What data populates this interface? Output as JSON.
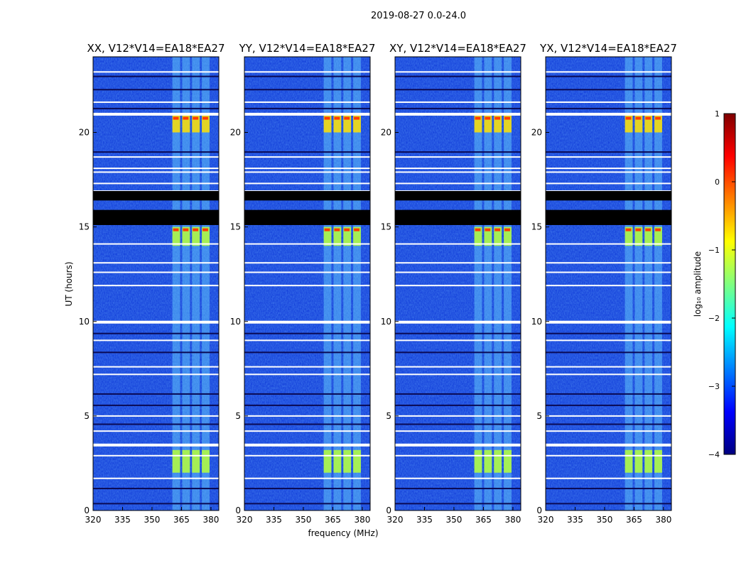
{
  "chart_data": {
    "type": "heatmap",
    "suptitle": "2019-08-27 0.0-24.0",
    "xlabel": "frequency (MHz)",
    "ylabel": "UT (hours)",
    "xlim": [
      320,
      384
    ],
    "ylim": [
      0,
      24
    ],
    "xticks": [
      320,
      335,
      350,
      365,
      380
    ],
    "yticks": [
      0,
      5,
      10,
      15,
      20
    ],
    "panels": [
      {
        "title": "XX, V12*V14=EA18*EA27",
        "rfi_band_mhz": [
          360,
          380
        ]
      },
      {
        "title": "YY, V12*V14=EA18*EA27",
        "rfi_band_mhz": [
          360,
          380
        ]
      },
      {
        "title": "XY, V12*V14=EA18*EA27",
        "rfi_band_mhz": [
          360,
          380
        ]
      },
      {
        "title": "YX, V12*V14=EA18*EA27",
        "rfi_band_mhz": [
          360,
          380
        ]
      }
    ],
    "bright_intervals_hours": [
      [
        20.0,
        20.9
      ],
      [
        14.0,
        15.0
      ],
      [
        2.0,
        3.2
      ]
    ],
    "flagged_gaps_hours": [
      [
        15.1,
        15.9
      ],
      [
        16.4,
        16.9
      ]
    ],
    "colorbar": {
      "label": "log₁₀ amplitude",
      "range": [
        -4,
        1
      ],
      "ticks": [
        1,
        0,
        -1,
        -2,
        -3,
        -4
      ],
      "colormap": "jet"
    }
  },
  "labels": {
    "tick_minus": "−"
  },
  "colors": {
    "background_low": "#0a33d6",
    "background_mid": "#1e66ff",
    "band": "#6ad6ff",
    "flagged": "#000000"
  }
}
